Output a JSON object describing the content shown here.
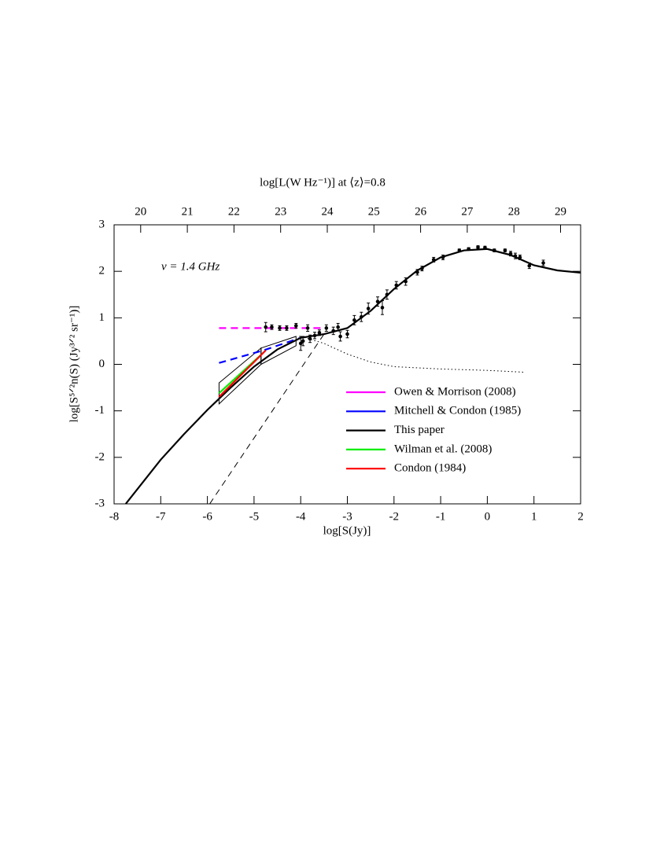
{
  "chart_data": {
    "type": "line",
    "title": "log[L(W Hz⁻¹)] at ⟨z⟩=0.8",
    "x_label": "log[S(Jy)]",
    "y_label": "log[S⁵ᐟ²n(S) (Jy³ᐟ² sr⁻¹)]",
    "annotation": "ν = 1.4 GHz",
    "xlim": [
      -8,
      2
    ],
    "xticks": [
      -8,
      -7,
      -6,
      -5,
      -4,
      -3,
      -2,
      -1,
      0,
      1,
      2
    ],
    "ylim": [
      -3,
      3
    ],
    "yticks": [
      -3,
      -2,
      -1,
      0,
      1,
      2,
      3
    ],
    "x2lim": [
      19.43,
      29.43
    ],
    "x2ticks": [
      20,
      21,
      22,
      23,
      24,
      25,
      26,
      27,
      28,
      29
    ],
    "legend": "lower right",
    "series": [
      {
        "name": "Owen & Morrison (2008)",
        "color": "#ff00ff",
        "dash": true,
        "x": [
          -5.75,
          -3.5
        ],
        "y": [
          0.78,
          0.78
        ]
      },
      {
        "name": "Mitchell & Condon (1985)",
        "color": "#0000ff",
        "dash": true,
        "x": [
          -5.75,
          -4.8,
          -4.0
        ],
        "y": [
          0.03,
          0.3,
          0.57
        ]
      },
      {
        "name": "This paper",
        "color": "#000000",
        "dash": false,
        "x": [
          -7.75,
          -7,
          -6.5,
          -6,
          -5.5,
          -5,
          -4.5,
          -4,
          -3.5,
          -3,
          -2.5,
          -2,
          -1.5,
          -1,
          -0.5,
          0,
          0.5,
          1,
          1.5,
          2
        ],
        "y": [
          -3,
          -2.05,
          -1.5,
          -0.98,
          -0.5,
          -0.05,
          0.32,
          0.57,
          0.65,
          0.78,
          1.15,
          1.62,
          2.02,
          2.3,
          2.45,
          2.48,
          2.35,
          2.13,
          2.02,
          1.97
        ]
      },
      {
        "name": "Wilman et al. (2008)",
        "color": "#00ee00",
        "dash": false,
        "x": [
          -5.75,
          -4.8
        ],
        "y": [
          -0.62,
          0.25
        ]
      },
      {
        "name": "Condon (1984)",
        "color": "#ff0000",
        "dash": false,
        "x": [
          -5.75,
          -4.75
        ],
        "y": [
          -0.7,
          0.3
        ]
      }
    ],
    "components": [
      {
        "style": "dotted",
        "x": [
          -4,
          -3.5,
          -3,
          -2.5,
          -2,
          -1,
          0,
          0.8
        ],
        "y": [
          0.6,
          0.45,
          0.22,
          0.05,
          -0.05,
          -0.1,
          -0.13,
          -0.17
        ]
      },
      {
        "style": "dashed",
        "x": [
          -5.95,
          -3.5
        ],
        "y": [
          -3,
          0.65
        ]
      }
    ],
    "boxes": [
      {
        "x": [
          -5.75,
          -4.85,
          -4.85,
          -5.75
        ],
        "y": [
          -0.4,
          0.35,
          0.0,
          -0.85
        ]
      },
      {
        "x": [
          -4.85,
          -4.1,
          -4.1,
          -4.85
        ],
        "y": [
          0.35,
          0.6,
          0.4,
          0.0
        ]
      }
    ],
    "points": {
      "x": [
        -4.75,
        -4.62,
        -4.45,
        -4.3,
        -4.1,
        -3.85,
        -4.0,
        -3.95,
        -3.8,
        -3.7,
        -3.6,
        -3.45,
        -3.3,
        -3.2,
        -3.15,
        -3.0,
        -2.85,
        -2.7,
        -2.55,
        -2.35,
        -2.25,
        -2.15,
        -1.95,
        -1.75,
        -1.5,
        -1.4,
        -1.15,
        -0.95,
        -0.6,
        -0.4,
        -0.2,
        -0.05,
        0.15,
        0.38,
        0.5,
        0.6,
        0.7,
        0.9,
        1.2
      ],
      "y": [
        0.8,
        0.8,
        0.78,
        0.78,
        0.83,
        0.78,
        0.45,
        0.5,
        0.55,
        0.62,
        0.68,
        0.78,
        0.72,
        0.8,
        0.6,
        0.65,
        0.95,
        1.02,
        1.2,
        1.35,
        1.22,
        1.5,
        1.7,
        1.78,
        1.98,
        2.06,
        2.25,
        2.3,
        2.45,
        2.48,
        2.52,
        2.51,
        2.45,
        2.45,
        2.38,
        2.33,
        2.3,
        2.12,
        2.18
      ],
      "err": [
        0.1,
        0.05,
        0.05,
        0.05,
        0.05,
        0.07,
        0.15,
        0.1,
        0.08,
        0.07,
        0.06,
        0.07,
        0.08,
        0.08,
        0.1,
        0.08,
        0.1,
        0.1,
        0.12,
        0.1,
        0.15,
        0.1,
        0.08,
        0.08,
        0.06,
        0.05,
        0.05,
        0.05,
        0.03,
        0.03,
        0.03,
        0.03,
        0.03,
        0.03,
        0.05,
        0.06,
        0.05,
        0.06,
        0.06
      ]
    }
  }
}
